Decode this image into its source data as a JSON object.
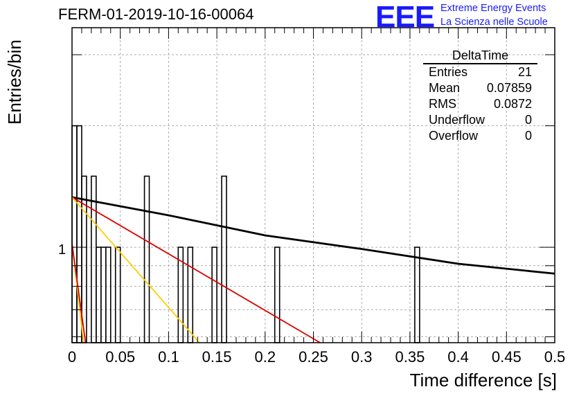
{
  "header": {
    "title": "FERM-01-2019-10-16-00064",
    "logo_text": "EEE",
    "logo_line1": "Extreme Energy Events",
    "logo_line2": "La Scienza nelle Scuole"
  },
  "stats": {
    "title": "DeltaTime",
    "rows": [
      {
        "label": "Entries",
        "value": "21"
      },
      {
        "label": "Mean",
        "value": "0.07859"
      },
      {
        "label": "RMS",
        "value": "0.0872"
      },
      {
        "label": "Underflow",
        "value": "0"
      },
      {
        "label": "Overflow",
        "value": "0"
      }
    ]
  },
  "chart_data": {
    "type": "bar",
    "title": "FERM-01-2019-10-16-00064",
    "xlabel": "Time difference [s]",
    "ylabel": "Entries/bin",
    "xlim": [
      0,
      0.5
    ],
    "ylim": [
      0.58,
      3.5
    ],
    "log_y": true,
    "grid": true,
    "bin_width": 0.005,
    "x_ticks": [
      "0",
      "0.05",
      "0.1",
      "0.15",
      "0.2",
      "0.25",
      "0.3",
      "0.35",
      "0.4",
      "0.45",
      "0.5"
    ],
    "y_tick_labels": [
      "1"
    ],
    "bins": [
      {
        "x": 0.0,
        "y": 2
      },
      {
        "x": 0.005,
        "y": 2
      },
      {
        "x": 0.01,
        "y": 1.5
      },
      {
        "x": 0.02,
        "y": 1.5
      },
      {
        "x": 0.025,
        "y": 1
      },
      {
        "x": 0.03,
        "y": 1
      },
      {
        "x": 0.035,
        "y": 1
      },
      {
        "x": 0.045,
        "y": 1
      },
      {
        "x": 0.075,
        "y": 1.5
      },
      {
        "x": 0.11,
        "y": 1
      },
      {
        "x": 0.12,
        "y": 1
      },
      {
        "x": 0.145,
        "y": 1
      },
      {
        "x": 0.155,
        "y": 1.5
      },
      {
        "x": 0.21,
        "y": 1
      },
      {
        "x": 0.355,
        "y": 1
      }
    ],
    "fit_lines": [
      {
        "color": "#000000",
        "points": [
          [
            0,
            1.33
          ],
          [
            0.1,
            1.2
          ],
          [
            0.2,
            1.07
          ],
          [
            0.3,
            0.99
          ],
          [
            0.4,
            0.91
          ],
          [
            0.5,
            0.86
          ]
        ]
      },
      {
        "color": "#dd0000",
        "points": [
          [
            0,
            1.33
          ],
          [
            0.257,
            0.58
          ]
        ]
      },
      {
        "color": "#ffcc00",
        "points": [
          [
            0,
            1.33
          ],
          [
            0.132,
            0.58
          ]
        ]
      },
      {
        "color": "#ffcc00",
        "points": [
          [
            0,
            1.02
          ],
          [
            0.012,
            0.58
          ]
        ]
      },
      {
        "color": "#dd0000",
        "points": [
          [
            0,
            1.02
          ],
          [
            0.014,
            0.58
          ]
        ]
      }
    ]
  }
}
